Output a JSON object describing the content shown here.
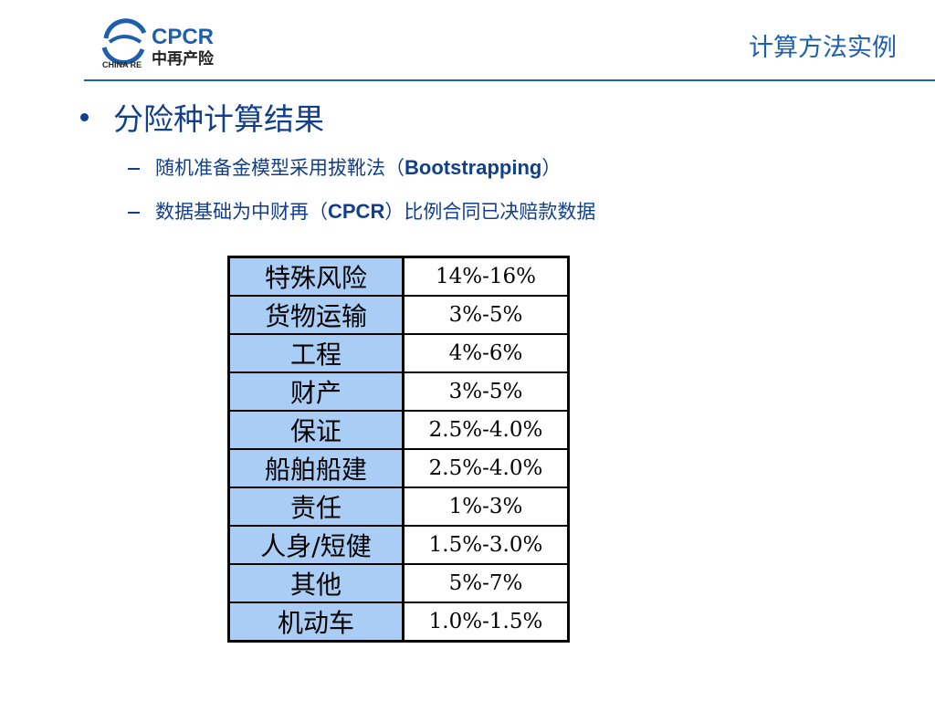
{
  "header": {
    "logo_en": "CPCR",
    "logo_cn": "中再产险",
    "logo_group": "CHINA RE",
    "title": "计算方法实例"
  },
  "bullet": {
    "text": "分险种计算结果",
    "subs": [
      [
        {
          "text": "随机准备金模型采用拔靴法（"
        },
        {
          "text": "Bootstrapping",
          "bold": true
        },
        {
          "text": "）"
        }
      ],
      [
        {
          "text": "数据基础为中财再（"
        },
        {
          "text": "CPCR",
          "bold": true
        },
        {
          "text": "）比例合同已决赔款数据"
        }
      ]
    ]
  },
  "table": {
    "rows": [
      [
        "特殊风险",
        "14%-16%"
      ],
      [
        "货物运输",
        "3%-5%"
      ],
      [
        "工程",
        "4%-6%"
      ],
      [
        "财产",
        "3%-5%"
      ],
      [
        "保证",
        "2.5%-4.0%"
      ],
      [
        "船舶船建",
        "2.5%-4.0%"
      ],
      [
        "责任",
        "1%-3%"
      ],
      [
        "人身/短健",
        "1.5%-3.0%"
      ],
      [
        "其他",
        "5%-7%"
      ],
      [
        "机动车",
        "1.0%-1.5%"
      ]
    ]
  }
}
